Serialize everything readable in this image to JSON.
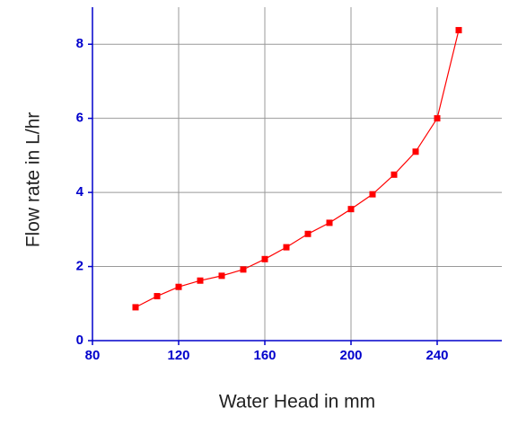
{
  "chart_data": {
    "type": "line",
    "xlabel": "Water Head in mm",
    "ylabel": "Flow rate in L/hr",
    "x": [
      100,
      110,
      120,
      130,
      140,
      150,
      160,
      170,
      180,
      190,
      200,
      210,
      220,
      230,
      240,
      250
    ],
    "series": [
      {
        "name": "Flow rate",
        "color": "#ff0000",
        "values": [
          0.9,
          1.2,
          1.45,
          1.62,
          1.75,
          1.92,
          2.2,
          2.52,
          2.88,
          3.18,
          3.55,
          3.95,
          4.48,
          5.1,
          6.0,
          8.38
        ]
      }
    ],
    "xlim": [
      80,
      270
    ],
    "xticks": [
      80,
      120,
      160,
      200,
      240
    ],
    "ylim": [
      0,
      9
    ],
    "yticks": [
      0,
      2,
      4,
      6,
      8
    ],
    "grid": true,
    "axis_color": "#0000cc",
    "grid_color": "#999999"
  }
}
